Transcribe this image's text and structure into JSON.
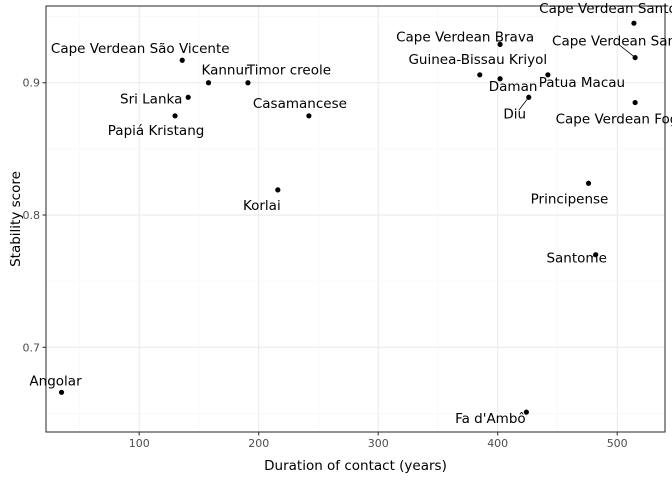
{
  "chart_data": {
    "type": "scatter",
    "xlabel": "Duration of contact (years)",
    "ylabel": "Stability score",
    "xlim": [
      22,
      540
    ],
    "ylim": [
      0.636,
      0.958
    ],
    "x_ticks": [
      100,
      200,
      300,
      400,
      500
    ],
    "y_ticks": [
      0.7,
      0.8,
      0.9
    ],
    "grid": true,
    "points": [
      {
        "label": "Cape Verdean Santo Antão",
        "x": 514,
        "y": 0.945
      },
      {
        "label": "Cape Verdean Santiago",
        "x": 515,
        "y": 0.919
      },
      {
        "label": "Cape Verdean Brava",
        "x": 402,
        "y": 0.929
      },
      {
        "label": "Cape Verdean São Vicente",
        "x": 136,
        "y": 0.917
      },
      {
        "label": "Kannur",
        "x": 158,
        "y": 0.9
      },
      {
        "label": "Timor creole",
        "x": 191,
        "y": 0.9
      },
      {
        "label": "Guinea-Bissau Kriyol",
        "x": 385,
        "y": 0.906
      },
      {
        "label": "Daman",
        "x": 402,
        "y": 0.903
      },
      {
        "label": "Patua Macau",
        "x": 442,
        "y": 0.906
      },
      {
        "label": "Diu",
        "x": 426,
        "y": 0.889
      },
      {
        "label": "Cape Verdean Fogo",
        "x": 515,
        "y": 0.885
      },
      {
        "label": "Sri Lanka",
        "x": 141,
        "y": 0.889
      },
      {
        "label": "Papiá Kristang",
        "x": 130,
        "y": 0.875
      },
      {
        "label": "Casamancese",
        "x": 242,
        "y": 0.875
      },
      {
        "label": "Korlai",
        "x": 216,
        "y": 0.819
      },
      {
        "label": "Principense",
        "x": 476,
        "y": 0.824
      },
      {
        "label": "Santome",
        "x": 482,
        "y": 0.77
      },
      {
        "label": "Angolar",
        "x": 35,
        "y": 0.666
      },
      {
        "label": "Fa d'Ambô",
        "x": 424,
        "y": 0.651
      }
    ]
  }
}
